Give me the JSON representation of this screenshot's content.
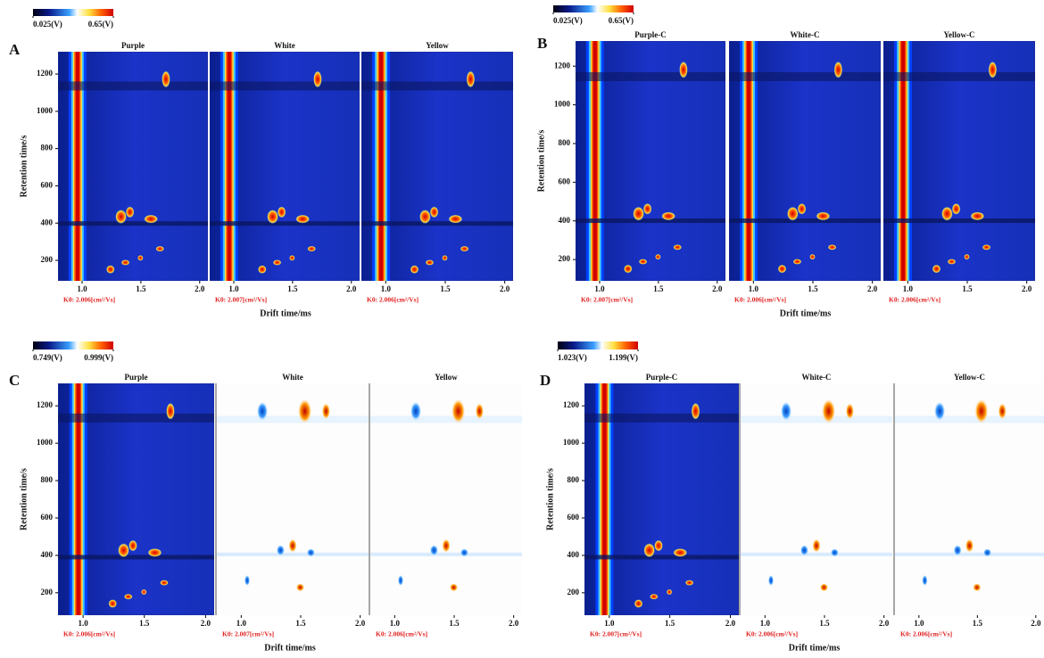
{
  "chart_data": [
    {
      "type": "topography",
      "label": "A",
      "ylabel": "Retention time/s",
      "xlabel": "Drift time/ms",
      "colorbar": [
        {
          "value": 0.025,
          "label": "0.025(V)"
        },
        {
          "value": 0.65,
          "label": "0.65(V)"
        }
      ],
      "subplots": [
        {
          "title": "Purple",
          "k0": "K0: 2.006[cm²/Vs]"
        },
        {
          "title": "White",
          "k0": "K0: 2.007[cm²/Vs]"
        },
        {
          "title": "Yellow",
          "k0": "K0: 2.006[cm²/Vs]"
        }
      ],
      "ylim": [
        90,
        1320
      ],
      "yticks": [
        200,
        400,
        600,
        800,
        1000,
        1200
      ],
      "xlim": [
        0.795,
        2.07
      ],
      "xticks": [
        {
          "value": 1,
          "label": "1.0"
        },
        {
          "value": 1.5,
          "label": "1.5"
        },
        {
          "value": 2,
          "label": "2.0"
        }
      ]
    },
    {
      "type": "topography",
      "label": "B",
      "ylabel": "Retention time/s",
      "xlabel": "Drift time/ms",
      "colorbar": [
        {
          "value": 0.025,
          "label": "0.025(V)"
        },
        {
          "value": 0.65,
          "label": "0.65(V)"
        }
      ],
      "subplots": [
        {
          "title": "Purple-C",
          "k0": "K0: 2.007[cm²/Vs]"
        },
        {
          "title": "White-C",
          "k0": "K0: 2.006[cm²/Vs]"
        },
        {
          "title": "Yellow-C",
          "k0": "K0: 2.006[cm²/Vs]"
        }
      ],
      "ylim": [
        90,
        1330
      ],
      "yticks": [
        200,
        400,
        600,
        800,
        1000,
        1200
      ],
      "xlim": [
        0.795,
        2.07
      ],
      "xticks": [
        {
          "value": 1,
          "label": "1.0"
        },
        {
          "value": 1.5,
          "label": "1.5"
        },
        {
          "value": 2,
          "label": "2.0"
        }
      ]
    },
    {
      "type": "topography",
      "label": "C",
      "ylabel": "Retention time/s",
      "xlabel": "Drift time/ms",
      "colorbar": [
        {
          "value": 0.749,
          "label": "0.749(V)"
        },
        {
          "value": 0.999,
          "label": "0.999(V)"
        }
      ],
      "subplots": [
        {
          "title": "Purple",
          "k0": "K0: 2.006[cm²/Vs]"
        },
        {
          "title": "White",
          "k0": "K0: 2.007[cm²/Vs]"
        },
        {
          "title": "Yellow",
          "k0": "K0: 2.006[cm²/Vs]"
        }
      ],
      "ylim": [
        80,
        1320
      ],
      "yticks": [
        200,
        400,
        600,
        800,
        1000,
        1200
      ],
      "xlim": [
        0.795,
        2.07
      ],
      "xticks": [
        {
          "value": 1,
          "label": "1.0"
        },
        {
          "value": 1.5,
          "label": "1.5"
        },
        {
          "value": 2,
          "label": "2.0"
        }
      ]
    },
    {
      "type": "topography",
      "label": "D",
      "ylabel": "Retention time/s",
      "xlabel": "Drift time/ms",
      "colorbar": [
        {
          "value": 1.023,
          "label": "1.023(V)"
        },
        {
          "value": 1.199,
          "label": "1.199(V)"
        }
      ],
      "subplots": [
        {
          "title": "Purple-C",
          "k0": "K0: 2.007[cm²/Vs]"
        },
        {
          "title": "White-C",
          "k0": "K0: 2.006[cm²/Vs]"
        },
        {
          "title": "Yellow-C",
          "k0": "K0: 2.006[cm²/Vs]"
        }
      ],
      "ylim": [
        80,
        1320
      ],
      "yticks": [
        200,
        400,
        600,
        800,
        1000,
        1200
      ],
      "xlim": [
        0.795,
        2.07
      ],
      "xticks": [
        {
          "value": 1,
          "label": "1.0"
        },
        {
          "value": 1.5,
          "label": "1.5"
        },
        {
          "value": 2,
          "label": "2.0"
        }
      ]
    }
  ]
}
